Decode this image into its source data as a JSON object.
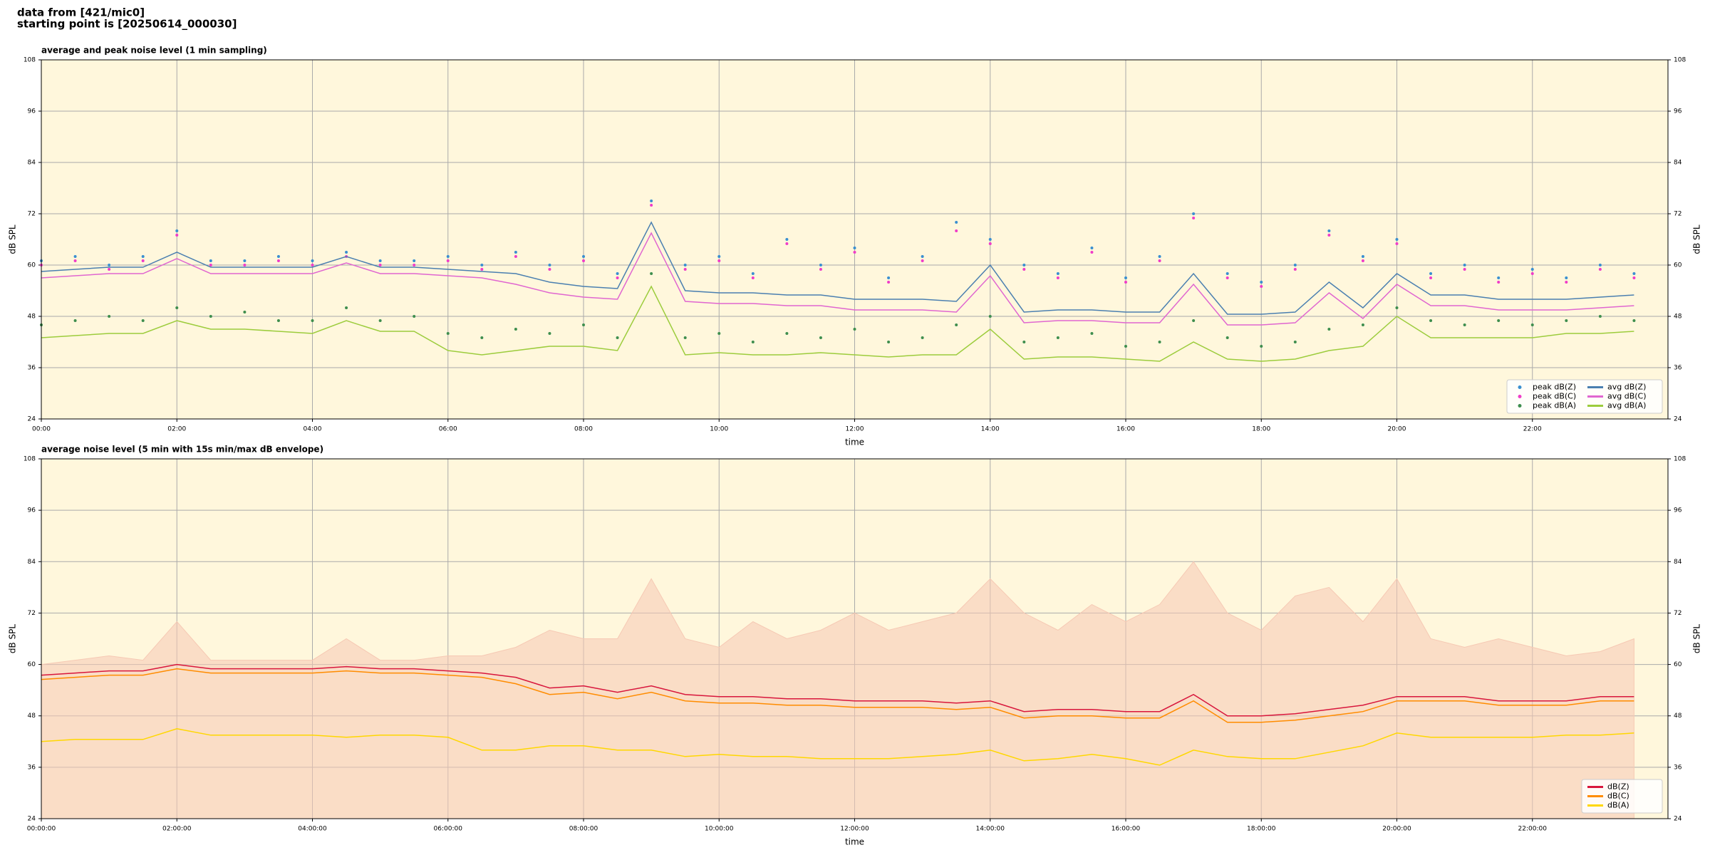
{
  "header": {
    "lines": [
      "data from [421/mic0]",
      "starting point is [20250614_000030]"
    ]
  },
  "chart_data": [
    {
      "type": "line",
      "title": "average and peak noise level (1 min sampling)",
      "x_label": "time",
      "y_label": "dB SPL",
      "x": [
        0,
        0.5,
        1,
        1.5,
        2,
        2.5,
        3,
        3.5,
        4,
        4.5,
        5,
        5.5,
        6,
        6.5,
        7,
        7.5,
        8,
        8.5,
        9,
        9.5,
        10,
        10.5,
        11,
        11.5,
        12,
        12.5,
        13,
        13.5,
        14,
        14.5,
        15,
        15.5,
        16,
        16.5,
        17,
        17.5,
        18,
        18.5,
        19,
        19.5,
        20,
        20.5,
        21,
        21.5,
        22,
        22.5,
        23,
        23.5
      ],
      "xlim": [
        0,
        24
      ],
      "xticks": [
        {
          "value": 0,
          "label": "00:00"
        },
        {
          "value": 2,
          "label": "02:00"
        },
        {
          "value": 4,
          "label": "04:00"
        },
        {
          "value": 6,
          "label": "06:00"
        },
        {
          "value": 8,
          "label": "08:00"
        },
        {
          "value": 10,
          "label": "10:00"
        },
        {
          "value": 12,
          "label": "12:00"
        },
        {
          "value": 14,
          "label": "14:00"
        },
        {
          "value": 16,
          "label": "16:00"
        },
        {
          "value": 18,
          "label": "18:00"
        },
        {
          "value": 20,
          "label": "20:00"
        },
        {
          "value": 22,
          "label": "22:00"
        }
      ],
      "ylim": [
        24,
        108
      ],
      "yticks": [
        24,
        36,
        48,
        60,
        72,
        84,
        96,
        108
      ],
      "grid": true,
      "legend": "lower right",
      "background": "#fff7dc",
      "series": [
        {
          "name": "peak dB(Z)",
          "color": "#3a8fd0",
          "marker": "dot",
          "values": [
            61,
            62,
            60,
            62,
            68,
            61,
            61,
            62,
            61,
            63,
            61,
            61,
            62,
            60,
            63,
            60,
            62,
            58,
            75,
            60,
            62,
            58,
            66,
            60,
            64,
            57,
            62,
            70,
            66,
            60,
            58,
            64,
            57,
            62,
            72,
            58,
            56,
            60,
            68,
            62,
            66,
            58,
            60,
            57,
            59,
            57,
            60,
            58
          ]
        },
        {
          "name": "peak dB(C)",
          "color": "#f03cc8",
          "marker": "dot",
          "values": [
            60,
            61,
            59,
            61,
            67,
            60,
            60,
            61,
            60,
            62,
            60,
            60,
            61,
            59,
            62,
            59,
            61,
            57,
            74,
            59,
            61,
            57,
            65,
            59,
            63,
            56,
            61,
            68,
            65,
            59,
            57,
            63,
            56,
            61,
            71,
            57,
            55,
            59,
            67,
            61,
            65,
            57,
            59,
            56,
            58,
            56,
            59,
            57
          ]
        },
        {
          "name": "peak dB(A)",
          "color": "#3e8e4e",
          "marker": "dot",
          "values": [
            46,
            47,
            48,
            47,
            50,
            48,
            49,
            47,
            47,
            50,
            47,
            48,
            44,
            43,
            45,
            44,
            46,
            43,
            58,
            43,
            44,
            42,
            44,
            43,
            45,
            42,
            43,
            46,
            48,
            42,
            43,
            44,
            41,
            42,
            47,
            43,
            41,
            42,
            45,
            46,
            50,
            47,
            46,
            47,
            46,
            47,
            48,
            47
          ]
        },
        {
          "name": "avg dB(Z)",
          "color": "#4a7fb0",
          "marker": "line",
          "values": [
            58.5,
            59,
            59.5,
            59.5,
            63,
            59.5,
            59.5,
            59.5,
            59.5,
            62,
            59.5,
            59.5,
            59,
            58.5,
            58,
            56,
            55,
            54.5,
            70,
            54,
            53.5,
            53.5,
            53,
            53,
            52,
            52,
            52,
            51.5,
            60,
            49,
            49.5,
            49.5,
            49,
            49,
            58,
            48.5,
            48.5,
            49,
            56,
            50,
            58,
            53,
            53,
            52,
            52,
            52,
            52.5,
            53
          ]
        },
        {
          "name": "avg dB(C)",
          "color": "#e066d0",
          "marker": "line",
          "values": [
            57,
            57.5,
            58,
            58,
            61.5,
            58,
            58,
            58,
            58,
            60.5,
            58,
            58,
            57.5,
            57,
            55.5,
            53.5,
            52.5,
            52,
            67.5,
            51.5,
            51,
            51,
            50.5,
            50.5,
            49.5,
            49.5,
            49.5,
            49,
            57.5,
            46.5,
            47,
            47,
            46.5,
            46.5,
            55.5,
            46,
            46,
            46.5,
            53.5,
            47.5,
            55.5,
            50.5,
            50.5,
            49.5,
            49.5,
            49.5,
            50,
            50.5
          ]
        },
        {
          "name": "avg dB(A)",
          "color": "#9ccc3c",
          "marker": "line",
          "values": [
            43,
            43.5,
            44,
            44,
            47,
            45,
            45,
            44.5,
            44,
            47,
            44.5,
            44.5,
            40,
            39,
            40,
            41,
            41,
            40,
            55,
            39,
            39.5,
            39,
            39,
            39.5,
            39,
            38.5,
            39,
            39,
            45,
            38,
            38.5,
            38.5,
            38,
            37.5,
            42,
            38,
            37.5,
            38,
            40,
            41,
            48,
            43,
            43,
            43,
            43,
            44,
            44,
            44.5
          ]
        }
      ]
    },
    {
      "type": "line",
      "title": "average noise level (5 min with 15s min/max dB envelope)",
      "x_label": "time",
      "y_label": "dB SPL",
      "x": [
        0,
        0.5,
        1,
        1.5,
        2,
        2.5,
        3,
        3.5,
        4,
        4.5,
        5,
        5.5,
        6,
        6.5,
        7,
        7.5,
        8,
        8.5,
        9,
        9.5,
        10,
        10.5,
        11,
        11.5,
        12,
        12.5,
        13,
        13.5,
        14,
        14.5,
        15,
        15.5,
        16,
        16.5,
        17,
        17.5,
        18,
        18.5,
        19,
        19.5,
        20,
        20.5,
        21,
        21.5,
        22,
        22.5,
        23,
        23.5
      ],
      "xlim": [
        0,
        24
      ],
      "xticks": [
        {
          "value": 0,
          "label": "00:00:00"
        },
        {
          "value": 2,
          "label": "02:00:00"
        },
        {
          "value": 4,
          "label": "04:00:00"
        },
        {
          "value": 6,
          "label": "06:00:00"
        },
        {
          "value": 8,
          "label": "08:00:00"
        },
        {
          "value": 10,
          "label": "10:00:00"
        },
        {
          "value": 12,
          "label": "12:00:00"
        },
        {
          "value": 14,
          "label": "14:00:00"
        },
        {
          "value": 16,
          "label": "16:00:00"
        },
        {
          "value": 18,
          "label": "18:00:00"
        },
        {
          "value": 20,
          "label": "20:00:00"
        },
        {
          "value": 22,
          "label": "22:00:00"
        }
      ],
      "ylim": [
        24,
        108
      ],
      "yticks": [
        24,
        36,
        48,
        60,
        72,
        84,
        96,
        108
      ],
      "grid": true,
      "legend": "lower right",
      "background": "#fff7dc",
      "series": [
        {
          "color": "#f6c9b4",
          "marker": "area",
          "values": [
            60,
            61,
            62,
            61,
            70,
            61,
            61,
            61,
            61,
            66,
            61,
            61,
            62,
            62,
            64,
            68,
            66,
            66,
            80,
            66,
            64,
            70,
            66,
            68,
            72,
            68,
            70,
            72,
            80,
            72,
            68,
            74,
            70,
            74,
            84,
            72,
            68,
            76,
            78,
            70,
            80,
            66,
            64,
            66,
            64,
            62,
            63,
            66
          ]
        },
        {
          "name": "dB(Z)",
          "color": "#d8163c",
          "marker": "line",
          "values": [
            57.5,
            58,
            58.5,
            58.5,
            60,
            59,
            59,
            59,
            59,
            59.5,
            59,
            59,
            58.5,
            58,
            57,
            54.5,
            55,
            53.5,
            55,
            53,
            52.5,
            52.5,
            52,
            52,
            51.5,
            51.5,
            51.5,
            51,
            51.5,
            49,
            49.5,
            49.5,
            49,
            49,
            53,
            48,
            48,
            48.5,
            49.5,
            50.5,
            52.5,
            52.5,
            52.5,
            51.5,
            51.5,
            51.5,
            52.5,
            52.5
          ]
        },
        {
          "name": "dB(C)",
          "color": "#ff8c00",
          "marker": "line",
          "values": [
            56.5,
            57,
            57.5,
            57.5,
            59,
            58,
            58,
            58,
            58,
            58.5,
            58,
            58,
            57.5,
            57,
            55.5,
            53,
            53.5,
            52,
            53.5,
            51.5,
            51,
            51,
            50.5,
            50.5,
            50,
            50,
            50,
            49.5,
            50,
            47.5,
            48,
            48,
            47.5,
            47.5,
            51.5,
            46.5,
            46.5,
            47,
            48,
            49,
            51.5,
            51.5,
            51.5,
            50.5,
            50.5,
            50.5,
            51.5,
            51.5
          ]
        },
        {
          "name": "dB(A)",
          "color": "#ffd700",
          "marker": "line",
          "values": [
            42,
            42.5,
            42.5,
            42.5,
            45,
            43.5,
            43.5,
            43.5,
            43.5,
            43,
            43.5,
            43.5,
            43,
            40,
            40,
            41,
            41,
            40,
            40,
            38.5,
            39,
            38.5,
            38.5,
            38,
            38,
            38,
            38.5,
            39,
            40,
            37.5,
            38,
            39,
            38,
            36.5,
            40,
            38.5,
            38,
            38,
            39.5,
            41,
            44,
            43,
            43,
            43,
            43,
            43.5,
            43.5,
            44
          ]
        }
      ]
    }
  ]
}
